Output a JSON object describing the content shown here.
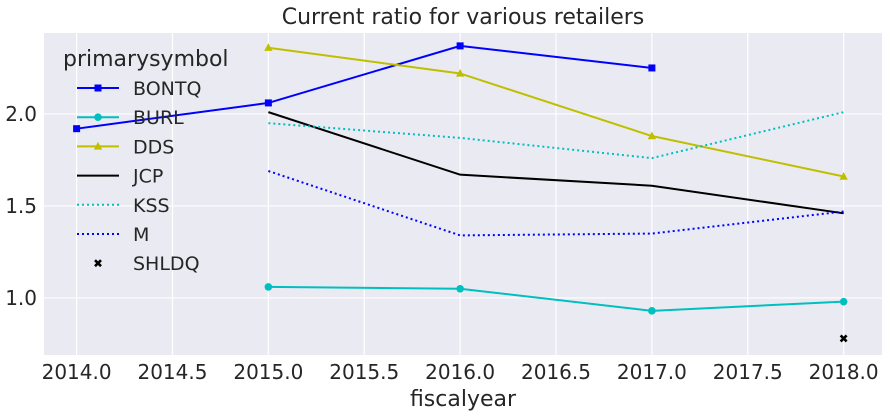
{
  "chart_data": {
    "type": "line",
    "title": "Current ratio for various retailers",
    "xlabel": "fiscalyear",
    "ylabel": "",
    "xlim": [
      2013.83,
      2018.2
    ],
    "ylim": [
      0.69,
      2.44
    ],
    "x_ticks": [
      "2014.0",
      "2014.5",
      "2015.0",
      "2015.5",
      "2016.0",
      "2016.5",
      "2017.0",
      "2017.5",
      "2018.0"
    ],
    "y_ticks": [
      "1.0",
      "1.5",
      "2.0"
    ],
    "grid": true,
    "legend": {
      "title": "primarysymbol",
      "position": "top-left"
    },
    "series": [
      {
        "name": "BONTQ",
        "color": "#0000ff",
        "style": "solid",
        "marker": "square",
        "x": [
          2014,
          2015,
          2016,
          2017
        ],
        "y": [
          1.92,
          2.06,
          2.37,
          2.25
        ]
      },
      {
        "name": "BURL",
        "color": "#00bfbf",
        "style": "solid",
        "marker": "circle",
        "x": [
          2015,
          2016,
          2017,
          2018
        ],
        "y": [
          1.06,
          1.05,
          0.93,
          0.98
        ]
      },
      {
        "name": "DDS",
        "color": "#bfbf00",
        "style": "solid",
        "marker": "triangle",
        "x": [
          2015,
          2016,
          2017,
          2018
        ],
        "y": [
          2.36,
          2.22,
          1.88,
          1.66
        ]
      },
      {
        "name": "JCP",
        "color": "#000000",
        "style": "solid",
        "marker": "none",
        "x": [
          2015,
          2016,
          2017,
          2018
        ],
        "y": [
          2.01,
          1.67,
          1.61,
          1.46
        ]
      },
      {
        "name": "KSS",
        "color": "#00bfbf",
        "style": "dotted",
        "marker": "none",
        "x": [
          2015,
          2016,
          2017,
          2018
        ],
        "y": [
          1.95,
          1.87,
          1.76,
          2.01
        ]
      },
      {
        "name": "M",
        "color": "#0000ff",
        "style": "dotted",
        "marker": "none",
        "x": [
          2015,
          2016,
          2017,
          2018
        ],
        "y": [
          1.69,
          1.34,
          1.35,
          1.47
        ]
      },
      {
        "name": "SHLDQ",
        "color": "#000000",
        "style": "none",
        "marker": "x",
        "x": [
          2018
        ],
        "y": [
          0.78
        ]
      }
    ]
  }
}
